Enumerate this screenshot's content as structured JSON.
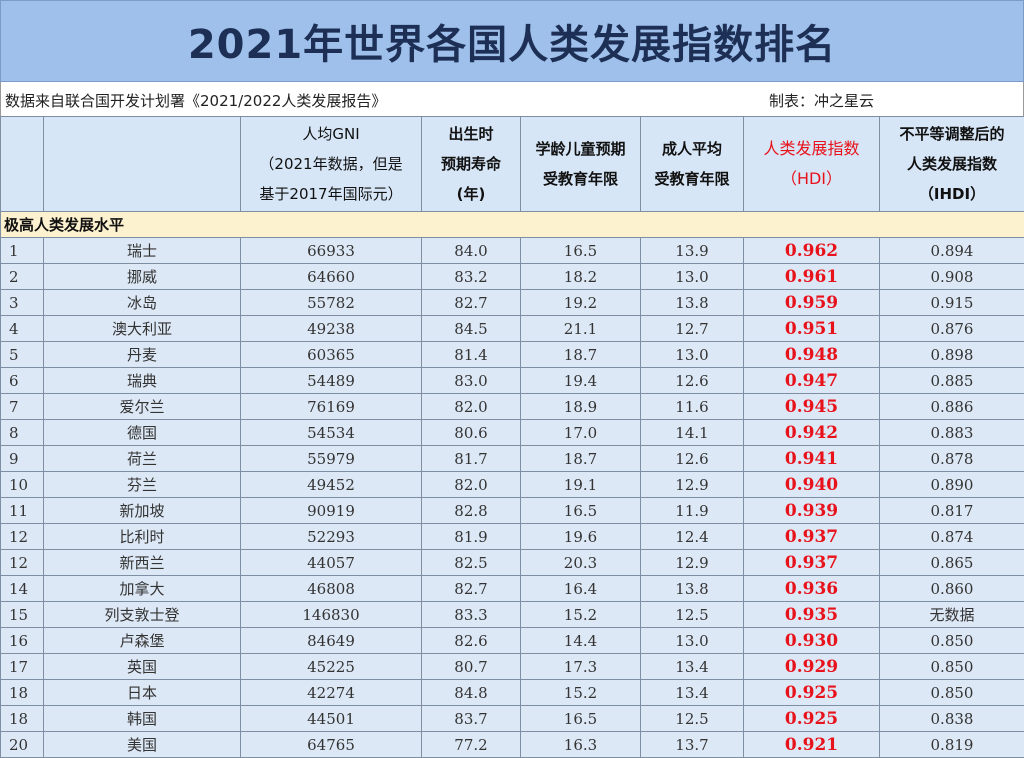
{
  "title": "2021年世界各国人类发展指数排名",
  "source": "数据来自联合国开发计划署《2021/2022人类发展报告》",
  "maker": "制表：冲之星云",
  "headers": {
    "rank": "",
    "country": "",
    "gni": [
      "人均GNI",
      "（2021年数据，但是",
      "基于2017年国际元）"
    ],
    "life": [
      "出生时",
      "预期寿命",
      "(年)"
    ],
    "expected_school": [
      "学龄儿童预期",
      "受教育年限"
    ],
    "mean_school": [
      "成人平均",
      "受教育年限"
    ],
    "hdi": [
      "人类发展指数",
      "（HDI）"
    ],
    "ihdi": [
      "不平等调整后的",
      "人类发展指数",
      "（IHDI）"
    ]
  },
  "group_label": "极高人类发展水平",
  "colors": {
    "title_bg": "#9ec0ea",
    "row_bg": "#dde8f6",
    "group_bg": "#fdf2cf",
    "hdi": "#e8121b"
  },
  "rows": [
    {
      "rank": "1",
      "country": "瑞士",
      "gni": "66933",
      "life": "84.0",
      "expected_school": "16.5",
      "mean_school": "13.9",
      "hdi": "0.962",
      "ihdi": "0.894"
    },
    {
      "rank": "2",
      "country": "挪威",
      "gni": "64660",
      "life": "83.2",
      "expected_school": "18.2",
      "mean_school": "13.0",
      "hdi": "0.961",
      "ihdi": "0.908"
    },
    {
      "rank": "3",
      "country": "冰岛",
      "gni": "55782",
      "life": "82.7",
      "expected_school": "19.2",
      "mean_school": "13.8",
      "hdi": "0.959",
      "ihdi": "0.915"
    },
    {
      "rank": "4",
      "country": "澳大利亚",
      "gni": "49238",
      "life": "84.5",
      "expected_school": "21.1",
      "mean_school": "12.7",
      "hdi": "0.951",
      "ihdi": "0.876"
    },
    {
      "rank": "5",
      "country": "丹麦",
      "gni": "60365",
      "life": "81.4",
      "expected_school": "18.7",
      "mean_school": "13.0",
      "hdi": "0.948",
      "ihdi": "0.898"
    },
    {
      "rank": "6",
      "country": "瑞典",
      "gni": "54489",
      "life": "83.0",
      "expected_school": "19.4",
      "mean_school": "12.6",
      "hdi": "0.947",
      "ihdi": "0.885"
    },
    {
      "rank": "7",
      "country": "爱尔兰",
      "gni": "76169",
      "life": "82.0",
      "expected_school": "18.9",
      "mean_school": "11.6",
      "hdi": "0.945",
      "ihdi": "0.886"
    },
    {
      "rank": "8",
      "country": "德国",
      "gni": "54534",
      "life": "80.6",
      "expected_school": "17.0",
      "mean_school": "14.1",
      "hdi": "0.942",
      "ihdi": "0.883"
    },
    {
      "rank": "9",
      "country": "荷兰",
      "gni": "55979",
      "life": "81.7",
      "expected_school": "18.7",
      "mean_school": "12.6",
      "hdi": "0.941",
      "ihdi": "0.878"
    },
    {
      "rank": "10",
      "country": "芬兰",
      "gni": "49452",
      "life": "82.0",
      "expected_school": "19.1",
      "mean_school": "12.9",
      "hdi": "0.940",
      "ihdi": "0.890"
    },
    {
      "rank": "11",
      "country": "新加坡",
      "gni": "90919",
      "life": "82.8",
      "expected_school": "16.5",
      "mean_school": "11.9",
      "hdi": "0.939",
      "ihdi": "0.817"
    },
    {
      "rank": "12",
      "country": "比利时",
      "gni": "52293",
      "life": "81.9",
      "expected_school": "19.6",
      "mean_school": "12.4",
      "hdi": "0.937",
      "ihdi": "0.874"
    },
    {
      "rank": "12",
      "country": "新西兰",
      "gni": "44057",
      "life": "82.5",
      "expected_school": "20.3",
      "mean_school": "12.9",
      "hdi": "0.937",
      "ihdi": "0.865"
    },
    {
      "rank": "14",
      "country": "加拿大",
      "gni": "46808",
      "life": "82.7",
      "expected_school": "16.4",
      "mean_school": "13.8",
      "hdi": "0.936",
      "ihdi": "0.860"
    },
    {
      "rank": "15",
      "country": "列支敦士登",
      "gni": "146830",
      "life": "83.3",
      "expected_school": "15.2",
      "mean_school": "12.5",
      "hdi": "0.935",
      "ihdi": "无数据"
    },
    {
      "rank": "16",
      "country": "卢森堡",
      "gni": "84649",
      "life": "82.6",
      "expected_school": "14.4",
      "mean_school": "13.0",
      "hdi": "0.930",
      "ihdi": "0.850"
    },
    {
      "rank": "17",
      "country": "英国",
      "gni": "45225",
      "life": "80.7",
      "expected_school": "17.3",
      "mean_school": "13.4",
      "hdi": "0.929",
      "ihdi": "0.850"
    },
    {
      "rank": "18",
      "country": "日本",
      "gni": "42274",
      "life": "84.8",
      "expected_school": "15.2",
      "mean_school": "13.4",
      "hdi": "0.925",
      "ihdi": "0.850"
    },
    {
      "rank": "18",
      "country": "韩国",
      "gni": "44501",
      "life": "83.7",
      "expected_school": "16.5",
      "mean_school": "12.5",
      "hdi": "0.925",
      "ihdi": "0.838"
    },
    {
      "rank": "20",
      "country": "美国",
      "gni": "64765",
      "life": "77.2",
      "expected_school": "16.3",
      "mean_school": "13.7",
      "hdi": "0.921",
      "ihdi": "0.819"
    }
  ]
}
